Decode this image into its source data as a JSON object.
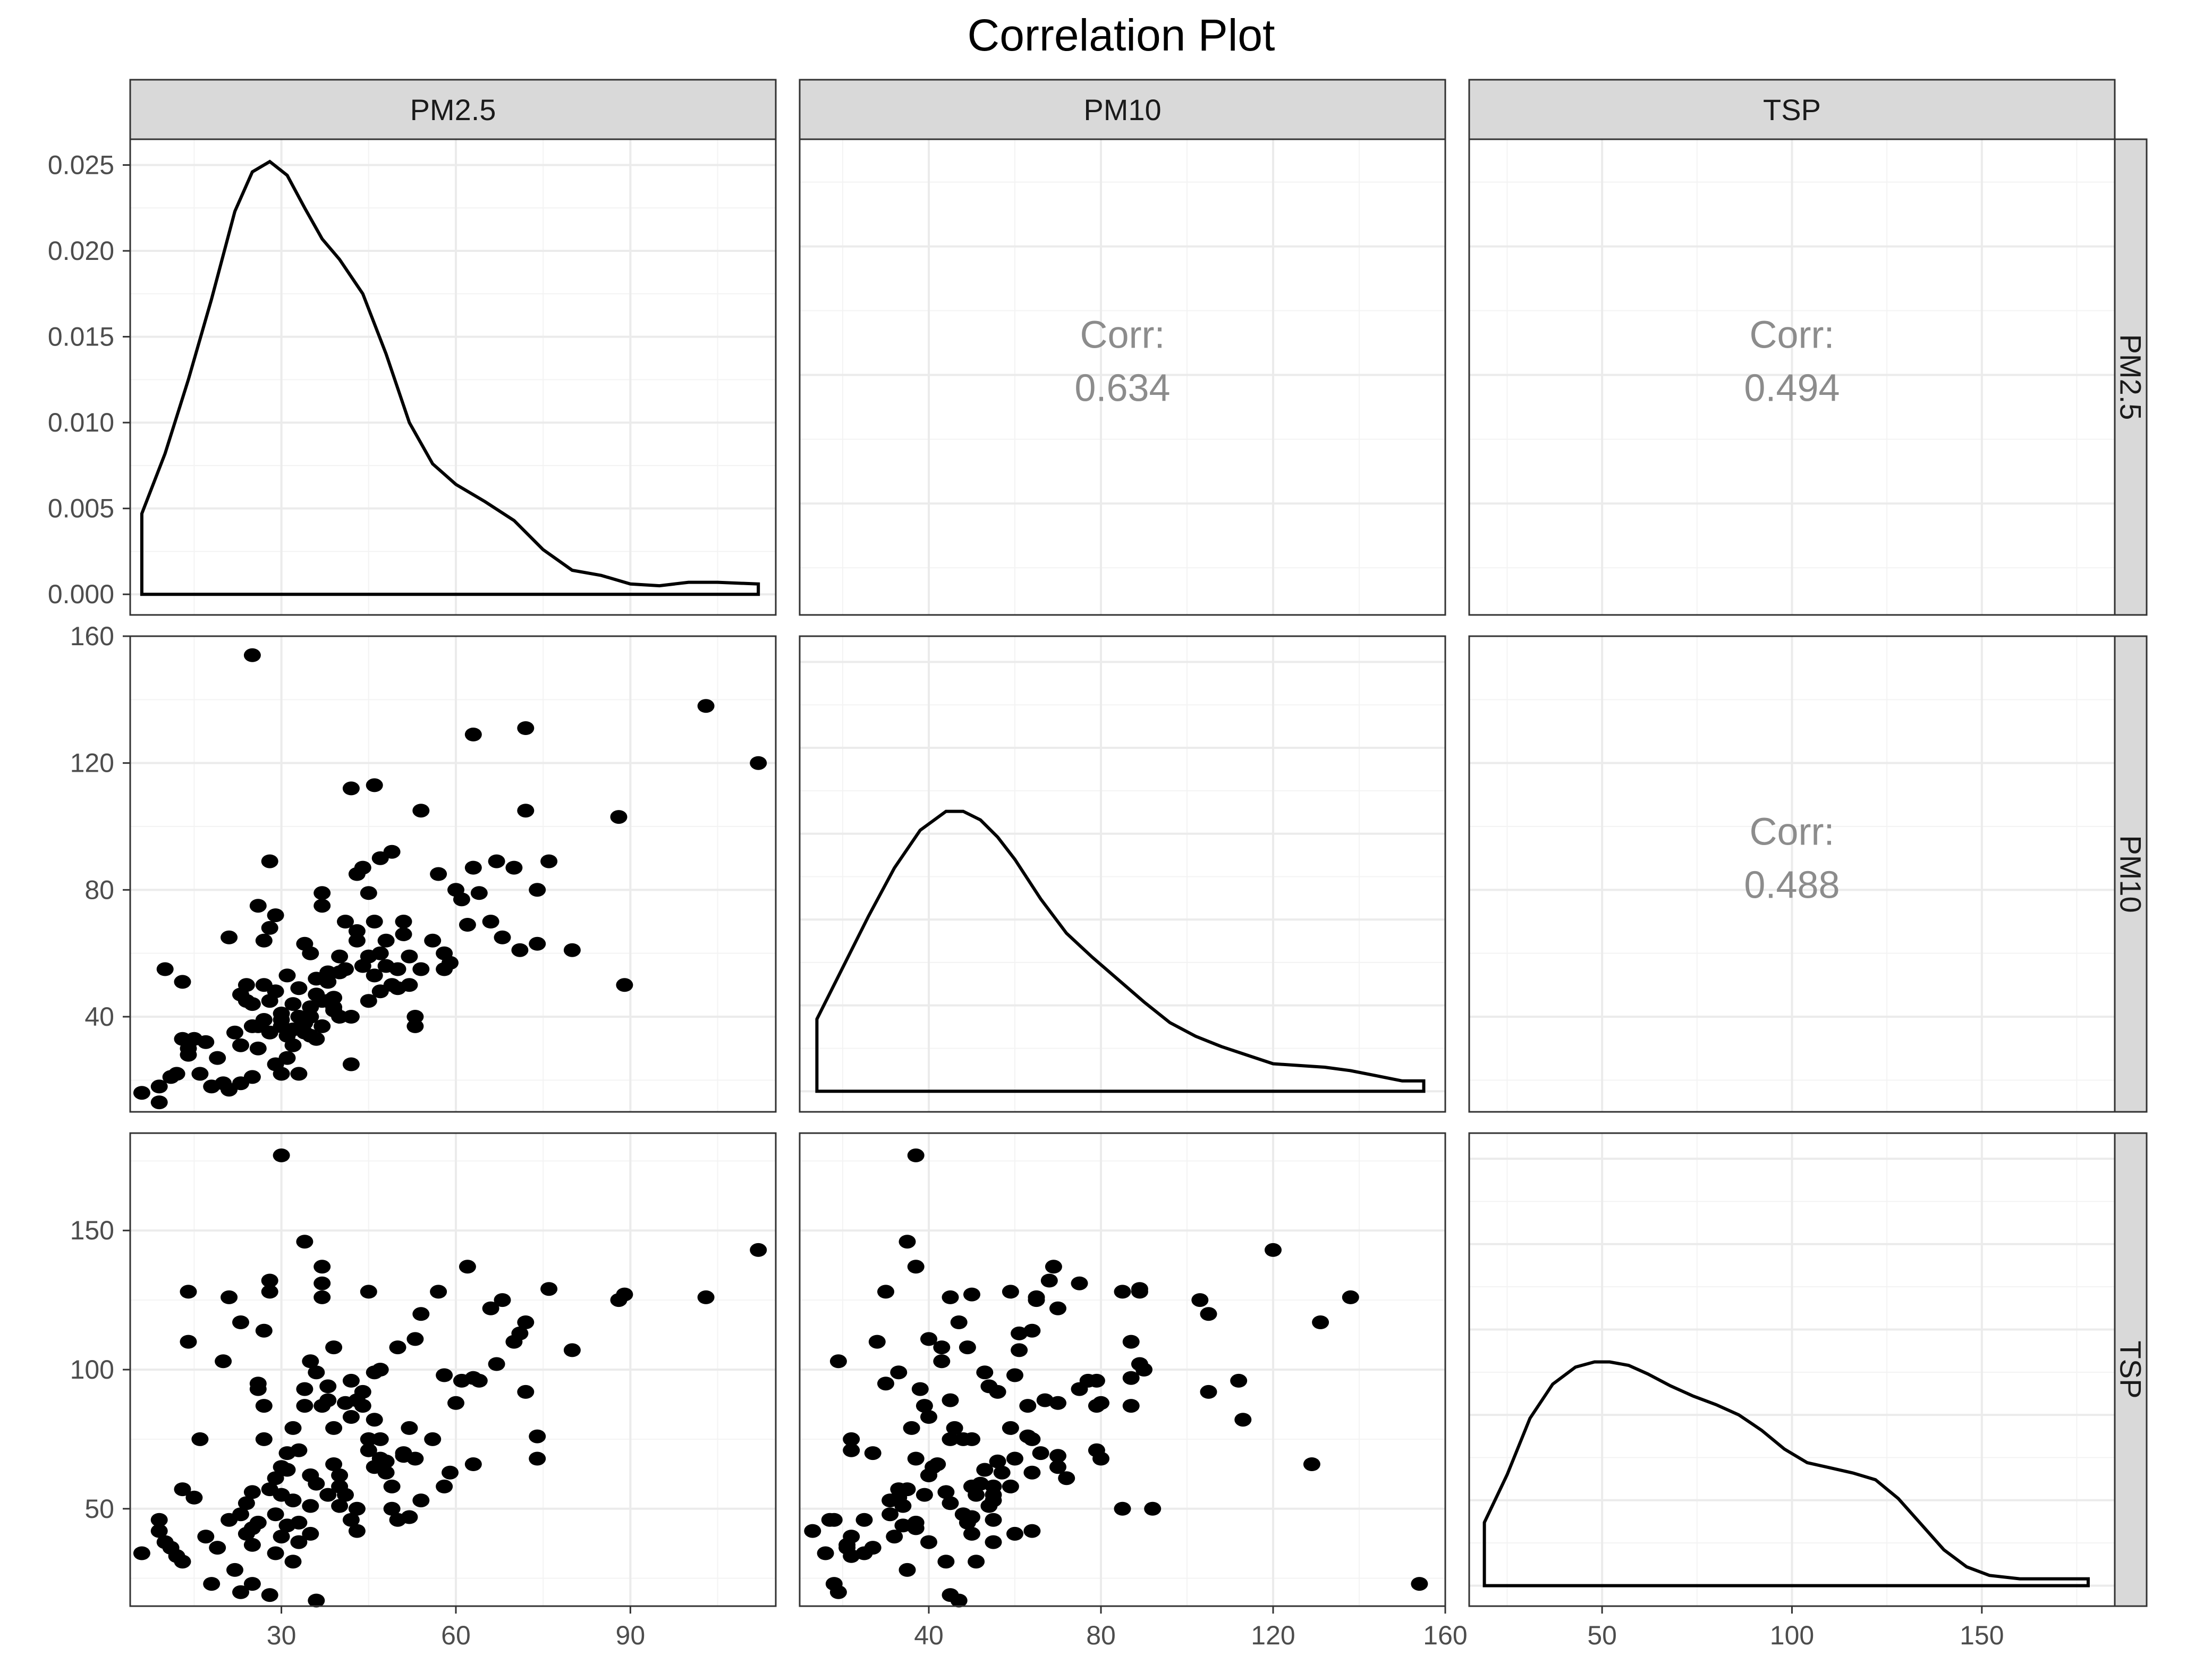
{
  "chart_data": {
    "type": "scatter-matrix",
    "title": "Correlation Plot",
    "variables": [
      "PM2.5",
      "PM10",
      "TSP"
    ],
    "ranges": {
      "PM2.5": [
        4,
        115
      ],
      "PM10": [
        10,
        160
      ],
      "TSP": [
        15,
        185
      ]
    },
    "ticks": {
      "PM2.5": [
        30,
        60,
        90
      ],
      "PM10": [
        40,
        80,
        120,
        160
      ],
      "TSP": [
        50,
        100,
        150
      ]
    },
    "density_axis": {
      "range": [
        -0.0012,
        0.0265
      ],
      "ticks": [
        0.0,
        0.005,
        0.01,
        0.015,
        0.02,
        0.025
      ],
      "tick_labels": [
        "0.000",
        "0.005",
        "0.010",
        "0.015",
        "0.020",
        "0.025"
      ]
    },
    "correlations": [
      {
        "row": "PM2.5",
        "col": "PM10",
        "label": "Corr:",
        "value": "0.634"
      },
      {
        "row": "PM2.5",
        "col": "TSP",
        "label": "Corr:",
        "value": "0.494"
      },
      {
        "row": "PM10",
        "col": "TSP",
        "label": "Corr:",
        "value": "0.488"
      }
    ],
    "densities": {
      "PM2.5": {
        "x": [
          6,
          10,
          14,
          18,
          22,
          25,
          28,
          31,
          34,
          37,
          40,
          44,
          48,
          52,
          56,
          60,
          65,
          70,
          75,
          80,
          85,
          90,
          95,
          100,
          105,
          112
        ],
        "y": [
          0.0047,
          0.0082,
          0.0125,
          0.0172,
          0.0223,
          0.0246,
          0.0252,
          0.0244,
          0.0225,
          0.0207,
          0.0195,
          0.0175,
          0.014,
          0.01,
          0.0076,
          0.0064,
          0.0054,
          0.0043,
          0.0026,
          0.0014,
          0.0011,
          0.0006,
          0.0005,
          0.0007,
          0.0007,
          0.0006
        ]
      },
      "PM10": {
        "x": [
          14,
          20,
          26,
          32,
          38,
          44,
          48,
          52,
          56,
          60,
          66,
          72,
          78,
          84,
          90,
          96,
          102,
          108,
          114,
          120,
          126,
          132,
          138,
          144,
          150,
          155
        ],
        "y": [
          0.0042,
          0.0072,
          0.0102,
          0.013,
          0.0152,
          0.0163,
          0.0163,
          0.0158,
          0.0148,
          0.0135,
          0.0112,
          0.0092,
          0.0078,
          0.0065,
          0.0052,
          0.004,
          0.0032,
          0.0026,
          0.0021,
          0.0016,
          0.0015,
          0.0014,
          0.0012,
          0.0009,
          0.0006,
          0.0006
        ]
      },
      "TSP": {
        "x": [
          19,
          25,
          31,
          37,
          43,
          48,
          52,
          57,
          62,
          68,
          74,
          80,
          86,
          92,
          98,
          104,
          110,
          116,
          122,
          128,
          134,
          140,
          146,
          152,
          160,
          178
        ],
        "y": [
          0.0037,
          0.0065,
          0.0098,
          0.0118,
          0.0128,
          0.0131,
          0.0131,
          0.0129,
          0.0124,
          0.0117,
          0.0111,
          0.0106,
          0.01,
          0.0091,
          0.008,
          0.0072,
          0.0069,
          0.0066,
          0.0062,
          0.0051,
          0.0036,
          0.0021,
          0.0011,
          0.0006,
          0.0004,
          0.0004
        ]
      }
    },
    "points": [
      [
        6,
        16,
        34
      ],
      [
        9,
        13,
        42
      ],
      [
        9,
        18,
        46
      ],
      [
        10,
        55,
        38
      ],
      [
        11,
        21,
        36
      ],
      [
        12,
        22,
        33
      ],
      [
        13,
        51,
        31
      ],
      [
        13,
        33,
        57
      ],
      [
        14,
        30,
        128
      ],
      [
        14,
        28,
        110
      ],
      [
        15,
        33,
        54
      ],
      [
        16,
        22,
        75
      ],
      [
        17,
        32,
        40
      ],
      [
        18,
        18,
        23
      ],
      [
        19,
        27,
        36
      ],
      [
        20,
        19,
        103
      ],
      [
        21,
        17,
        46
      ],
      [
        21,
        65,
        126
      ],
      [
        22,
        35,
        28
      ],
      [
        23,
        19,
        20
      ],
      [
        23,
        47,
        117
      ],
      [
        23,
        31,
        48
      ],
      [
        24,
        45,
        52
      ],
      [
        24,
        50,
        41
      ],
      [
        25,
        21,
        37
      ],
      [
        25,
        44,
        56
      ],
      [
        25,
        154,
        23
      ],
      [
        25,
        37,
        43
      ],
      [
        26,
        30,
        95
      ],
      [
        26,
        37,
        45
      ],
      [
        26,
        75,
        93
      ],
      [
        27,
        39,
        87
      ],
      [
        27,
        64,
        114
      ],
      [
        27,
        50,
        75
      ],
      [
        28,
        45,
        19
      ],
      [
        28,
        35,
        57
      ],
      [
        28,
        68,
        132
      ],
      [
        28,
        89,
        128
      ],
      [
        29,
        72,
        61
      ],
      [
        29,
        25,
        34
      ],
      [
        29,
        48,
        48
      ],
      [
        30,
        22,
        40
      ],
      [
        30,
        39,
        55
      ],
      [
        30,
        41,
        65
      ],
      [
        30,
        37,
        177
      ],
      [
        31,
        53,
        64
      ],
      [
        31,
        34,
        44
      ],
      [
        31,
        27,
        70
      ],
      [
        32,
        36,
        79
      ],
      [
        32,
        31,
        53
      ],
      [
        32,
        44,
        31
      ],
      [
        33,
        22,
        71
      ],
      [
        33,
        40,
        38
      ],
      [
        33,
        49,
        45
      ],
      [
        34,
        38,
        93
      ],
      [
        34,
        35,
        146
      ],
      [
        34,
        63,
        87
      ],
      [
        35,
        43,
        103
      ],
      [
        35,
        40,
        62
      ],
      [
        35,
        34,
        51
      ],
      [
        35,
        60,
        41
      ],
      [
        36,
        33,
        99
      ],
      [
        36,
        47,
        17
      ],
      [
        36,
        52,
        59
      ],
      [
        37,
        45,
        126
      ],
      [
        37,
        75,
        131
      ],
      [
        37,
        37,
        137
      ],
      [
        37,
        79,
        87
      ],
      [
        38,
        45,
        89
      ],
      [
        38,
        54,
        94
      ],
      [
        38,
        51,
        55
      ],
      [
        39,
        42,
        66
      ],
      [
        39,
        43,
        108
      ],
      [
        39,
        46,
        79
      ],
      [
        40,
        40,
        62
      ],
      [
        40,
        59,
        58
      ],
      [
        40,
        54,
        51
      ],
      [
        41,
        70,
        88
      ],
      [
        41,
        55,
        55
      ],
      [
        42,
        40,
        83
      ],
      [
        42,
        112,
        96
      ],
      [
        42,
        25,
        46
      ],
      [
        43,
        64,
        42
      ],
      [
        43,
        67,
        89
      ],
      [
        43,
        85,
        50
      ],
      [
        44,
        87,
        87
      ],
      [
        44,
        56,
        92
      ],
      [
        45,
        79,
        71
      ],
      [
        45,
        45,
        75
      ],
      [
        45,
        59,
        128
      ],
      [
        46,
        53,
        99
      ],
      [
        46,
        70,
        65
      ],
      [
        46,
        113,
        82
      ],
      [
        47,
        48,
        75
      ],
      [
        47,
        60,
        68
      ],
      [
        47,
        90,
        100
      ],
      [
        48,
        56,
        67
      ],
      [
        48,
        64,
        63
      ],
      [
        49,
        50,
        58
      ],
      [
        49,
        92,
        50
      ],
      [
        50,
        55,
        46
      ],
      [
        50,
        49,
        108
      ],
      [
        51,
        66,
        70
      ],
      [
        51,
        70,
        69
      ],
      [
        52,
        50,
        47
      ],
      [
        52,
        59,
        79
      ],
      [
        53,
        40,
        111
      ],
      [
        53,
        37,
        68
      ],
      [
        54,
        55,
        53
      ],
      [
        54,
        105,
        120
      ],
      [
        56,
        64,
        75
      ],
      [
        57,
        85,
        128
      ],
      [
        58,
        60,
        98
      ],
      [
        58,
        55,
        58
      ],
      [
        59,
        57,
        63
      ],
      [
        60,
        80,
        88
      ],
      [
        61,
        77,
        96
      ],
      [
        62,
        69,
        137
      ],
      [
        63,
        87,
        97
      ],
      [
        63,
        129,
        66
      ],
      [
        64,
        79,
        96
      ],
      [
        66,
        70,
        122
      ],
      [
        67,
        89,
        102
      ],
      [
        68,
        65,
        125
      ],
      [
        70,
        87,
        110
      ],
      [
        71,
        61,
        113
      ],
      [
        72,
        131,
        117
      ],
      [
        72,
        105,
        92
      ],
      [
        74,
        63,
        76
      ],
      [
        74,
        80,
        68
      ],
      [
        76,
        89,
        129
      ],
      [
        80,
        61,
        107
      ],
      [
        88,
        103,
        125
      ],
      [
        89,
        50,
        127
      ],
      [
        103,
        138,
        126
      ],
      [
        112,
        120,
        143
      ]
    ]
  }
}
